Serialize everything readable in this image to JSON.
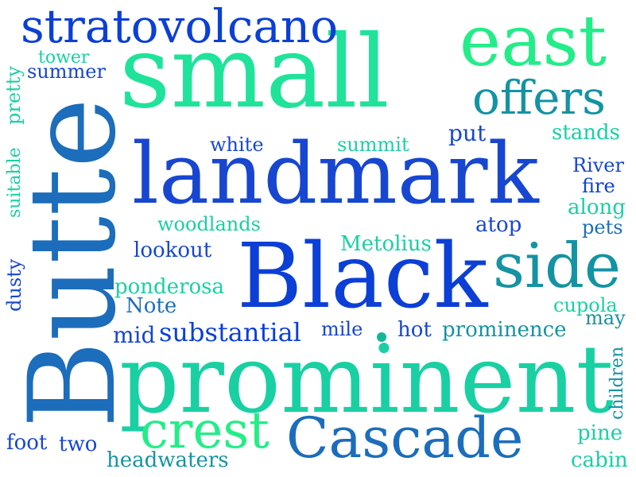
{
  "words": {
    "small": "small",
    "butte": "Butte",
    "landmark": "landmark",
    "black": "Black",
    "prominent": "prominent",
    "stratovolcano": "stratovolcano",
    "east": "east",
    "offers": "offers",
    "side": "side",
    "crest": "crest",
    "cascade": "Cascade",
    "tower": "tower",
    "summer": "summer",
    "pretty": "pretty",
    "suitable": "suitable",
    "dusty": "dusty",
    "white": "white",
    "summit": "summit",
    "put": "put",
    "stands": "stands",
    "river": "River",
    "fire": "fire",
    "along": "along",
    "pets": "pets",
    "atop": "atop",
    "woodlands": "woodlands",
    "lookout": "lookout",
    "metolius": "Metolius",
    "ponderosa": "ponderosa",
    "note": "Note",
    "cupola": "cupola",
    "may": "may",
    "mid": "mid",
    "substantial": "substantial",
    "mile": "mile",
    "hot": "hot",
    "prominence": "prominence",
    "children": "children",
    "pine": "pine",
    "cabin": "cabin",
    "foot": "foot",
    "two": "two",
    "headwaters": "headwaters"
  },
  "colors": {
    "royal": "#0b3fd6",
    "blue": "#1746d0",
    "mid": "#1c6dbb",
    "teal": "#1493a3",
    "seagreen": "#10b796",
    "aqua": "#19d0a3",
    "mint": "#1fe39a",
    "green": "#23ed88",
    "dot": "#10b796"
  }
}
